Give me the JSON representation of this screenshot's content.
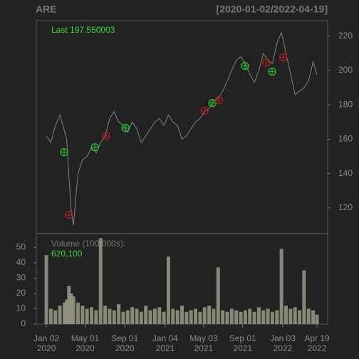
{
  "chart_data": [
    {
      "type": "line",
      "title": "ARE",
      "subtitle": "[2020-01-02/2022-04-19]",
      "annotation": "Last 197.550003",
      "color": "#808080",
      "x": [
        "2020-01-02",
        "2020-01-16",
        "2020-01-30",
        "2020-02-13",
        "2020-02-27",
        "2020-03-05",
        "2020-03-12",
        "2020-03-19",
        "2020-03-26",
        "2020-04-09",
        "2020-04-23",
        "2020-05-07",
        "2020-05-21",
        "2020-06-04",
        "2020-06-18",
        "2020-07-02",
        "2020-07-16",
        "2020-07-30",
        "2020-08-13",
        "2020-08-27",
        "2020-09-10",
        "2020-09-24",
        "2020-10-08",
        "2020-10-22",
        "2020-11-05",
        "2020-11-19",
        "2020-12-03",
        "2020-12-17",
        "2020-12-31",
        "2021-01-14",
        "2021-01-28",
        "2021-02-11",
        "2021-02-25",
        "2021-03-11",
        "2021-03-25",
        "2021-04-08",
        "2021-04-22",
        "2021-05-06",
        "2021-05-20",
        "2021-06-03",
        "2021-06-17",
        "2021-07-01",
        "2021-07-15",
        "2021-07-29",
        "2021-08-12",
        "2021-08-26",
        "2021-09-09",
        "2021-09-23",
        "2021-10-07",
        "2021-10-21",
        "2021-11-04",
        "2021-11-18",
        "2021-12-02",
        "2021-12-16",
        "2021-12-30",
        "2022-01-13",
        "2022-01-27",
        "2022-02-10",
        "2022-02-24",
        "2022-03-10",
        "2022-03-24",
        "2022-04-07",
        "2022-04-19"
      ],
      "values": [
        162,
        158,
        168,
        174,
        165,
        160,
        138,
        118,
        110,
        140,
        148,
        150,
        155,
        152,
        158,
        162,
        172,
        176,
        170,
        168,
        164,
        170,
        166,
        158,
        162,
        166,
        170,
        172,
        168,
        174,
        170,
        168,
        160,
        162,
        166,
        170,
        172,
        176,
        178,
        182,
        184,
        188,
        194,
        200,
        206,
        208,
        204,
        198,
        193,
        200,
        210,
        206,
        204,
        216,
        222,
        210,
        198,
        186,
        188,
        190,
        194,
        205,
        197.55
      ],
      "ylim": [
        105,
        229
      ],
      "yticks": [
        120,
        140,
        160,
        180,
        200,
        220
      ],
      "xlim": [
        "2019-12-02",
        "2022-05-22"
      ],
      "signals": [
        {
          "color": "#22cc22",
          "x": [
            "2020-02-26",
            "2020-05-31",
            "2020-09-03",
            "2021-05-30",
            "2021-09-08",
            "2021-12-01"
          ],
          "values": [
            152.4,
            155.3,
            166.5,
            181.0,
            202.6,
            199.3
          ]
        },
        {
          "color": "#b02020",
          "x": [
            "2020-03-12",
            "2020-07-05",
            "2021-05-06",
            "2021-06-19",
            "2021-11-13",
            "2022-01-05"
          ],
          "values": [
            115.9,
            161.9,
            176.4,
            182.7,
            204.6,
            207.6
          ]
        }
      ]
    },
    {
      "type": "bar",
      "annotation": "Volume (100,000s):",
      "last_label": "620,100",
      "color": "#9a9a86",
      "x": [
        "2020-01-02",
        "2020-01-16",
        "2020-01-30",
        "2020-02-13",
        "2020-02-27",
        "2020-03-05",
        "2020-03-12",
        "2020-03-19",
        "2020-03-26",
        "2020-04-09",
        "2020-04-23",
        "2020-05-07",
        "2020-05-21",
        "2020-06-04",
        "2020-06-18",
        "2020-07-02",
        "2020-07-16",
        "2020-07-30",
        "2020-08-13",
        "2020-08-27",
        "2020-09-10",
        "2020-09-24",
        "2020-10-08",
        "2020-10-22",
        "2020-11-05",
        "2020-11-19",
        "2020-12-03",
        "2020-12-17",
        "2020-12-31",
        "2021-01-14",
        "2021-01-28",
        "2021-02-11",
        "2021-02-25",
        "2021-03-11",
        "2021-03-25",
        "2021-04-08",
        "2021-04-22",
        "2021-05-06",
        "2021-05-20",
        "2021-06-03",
        "2021-06-17",
        "2021-07-01",
        "2021-07-15",
        "2021-07-29",
        "2021-08-12",
        "2021-08-26",
        "2021-09-09",
        "2021-09-23",
        "2021-10-07",
        "2021-10-21",
        "2021-11-04",
        "2021-11-18",
        "2021-12-02",
        "2021-12-16",
        "2021-12-30",
        "2022-01-13",
        "2022-01-27",
        "2022-02-10",
        "2022-02-24",
        "2022-03-10",
        "2022-03-24",
        "2022-04-07",
        "2022-04-19"
      ],
      "values": [
        45,
        10,
        9,
        12,
        14,
        16,
        25,
        20,
        18,
        14,
        12,
        10,
        11,
        9,
        56,
        12,
        10,
        9,
        13,
        8,
        9,
        11,
        10,
        8,
        12,
        9,
        10,
        11,
        8,
        44,
        10,
        9,
        12,
        8,
        9,
        10,
        8,
        11,
        12,
        10,
        37,
        9,
        8,
        10,
        9,
        8,
        9,
        10,
        8,
        11,
        9,
        10,
        8,
        9,
        49,
        12,
        10,
        11,
        9,
        35,
        10,
        9,
        6.2
      ],
      "ylim": [
        0,
        59
      ],
      "yticks": [
        0,
        10,
        20,
        30,
        40,
        50
      ],
      "xlim": [
        "2019-12-02",
        "2022-05-22"
      ],
      "xticks": [
        {
          "value": "2020-01-02",
          "label": "Jan 02 2020"
        },
        {
          "value": "2020-05-01",
          "label": "May 01 2020"
        },
        {
          "value": "2020-09-01",
          "label": "Sep 01 2020"
        },
        {
          "value": "2021-01-04",
          "label": "Jan 04 2021"
        },
        {
          "value": "2021-05-03",
          "label": "May 03 2021"
        },
        {
          "value": "2021-09-01",
          "label": "Sep 01 2021"
        },
        {
          "value": "2022-01-03",
          "label": "Jan 03 2022"
        },
        {
          "value": "2022-04-19",
          "label": "Apr 19 2022"
        }
      ]
    }
  ]
}
